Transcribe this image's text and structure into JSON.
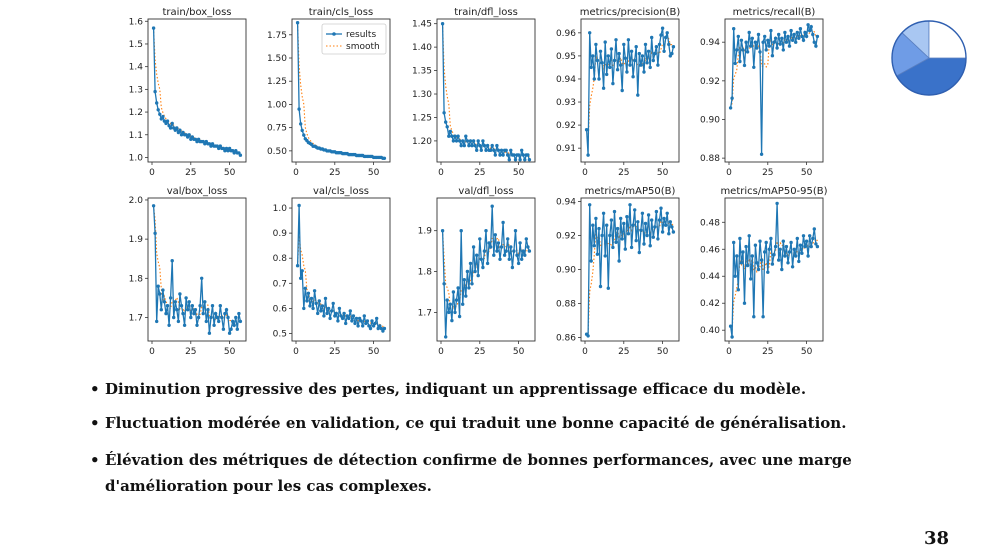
{
  "slide": {
    "bullets": [
      "Diminution progressive des pertes, indiquant un apprentissage efficace du modèle.",
      "Fluctuation modérée en validation, ce qui traduit une bonne capacité de généralisation.",
      "Élévation des métriques de détection confirme de bonnes performances, avec une marge d'amélioration pour les cas complexes."
    ],
    "page_number": "38"
  },
  "pie_icon": {
    "slices": [
      0.42,
      0.2,
      0.13,
      0.25
    ],
    "colors": [
      "#3a72c9",
      "#6f9ce6",
      "#a9c7f2",
      "#ffffff"
    ]
  },
  "colors": {
    "results": "#1f77b4",
    "smooth": "#ff7f0e"
  },
  "legend": {
    "results": "results",
    "smooth": "smooth"
  },
  "chart_data": [
    {
      "type": "line",
      "title": "train/box_loss",
      "ylim": [
        0.98,
        1.61
      ],
      "yticks": [
        1.0,
        1.1,
        1.2,
        1.3,
        1.4,
        1.5,
        1.6
      ],
      "yfmt": 1,
      "legend": false,
      "series": [
        {
          "name": "results",
          "values": [
            1.57,
            1.29,
            1.24,
            1.21,
            1.19,
            1.17,
            1.18,
            1.16,
            1.15,
            1.16,
            1.14,
            1.13,
            1.15,
            1.13,
            1.12,
            1.13,
            1.11,
            1.12,
            1.1,
            1.11,
            1.1,
            1.1,
            1.09,
            1.1,
            1.08,
            1.09,
            1.08,
            1.08,
            1.07,
            1.08,
            1.07,
            1.07,
            1.07,
            1.06,
            1.07,
            1.06,
            1.06,
            1.05,
            1.06,
            1.05,
            1.05,
            1.05,
            1.04,
            1.05,
            1.04,
            1.04,
            1.03,
            1.04,
            1.03,
            1.04,
            1.03,
            1.03,
            1.02,
            1.03,
            1.02,
            1.02,
            1.01
          ]
        }
      ]
    },
    {
      "type": "line",
      "title": "train/cls_loss",
      "ylim": [
        0.38,
        1.92
      ],
      "yticks": [
        0.5,
        0.75,
        1.0,
        1.25,
        1.5,
        1.75
      ],
      "yfmt": 2,
      "legend": true,
      "series": [
        {
          "name": "results",
          "values": [
            1.88,
            0.95,
            0.79,
            0.72,
            0.67,
            0.63,
            0.61,
            0.59,
            0.58,
            0.57,
            0.55,
            0.55,
            0.54,
            0.53,
            0.53,
            0.52,
            0.52,
            0.51,
            0.51,
            0.5,
            0.5,
            0.5,
            0.49,
            0.49,
            0.49,
            0.48,
            0.48,
            0.48,
            0.48,
            0.47,
            0.47,
            0.47,
            0.47,
            0.46,
            0.46,
            0.46,
            0.46,
            0.46,
            0.45,
            0.45,
            0.45,
            0.45,
            0.45,
            0.44,
            0.44,
            0.44,
            0.44,
            0.44,
            0.44,
            0.43,
            0.43,
            0.43,
            0.43,
            0.43,
            0.43,
            0.42,
            0.42
          ]
        }
      ]
    },
    {
      "type": "line",
      "title": "train/dfl_loss",
      "ylim": [
        1.155,
        1.46
      ],
      "yticks": [
        1.2,
        1.25,
        1.3,
        1.35,
        1.4,
        1.45
      ],
      "yfmt": 2,
      "legend": false,
      "series": [
        {
          "name": "results",
          "values": [
            1.45,
            1.26,
            1.24,
            1.23,
            1.21,
            1.22,
            1.21,
            1.2,
            1.21,
            1.2,
            1.21,
            1.2,
            1.19,
            1.2,
            1.19,
            1.21,
            1.2,
            1.19,
            1.2,
            1.19,
            1.2,
            1.19,
            1.18,
            1.2,
            1.19,
            1.18,
            1.2,
            1.19,
            1.18,
            1.19,
            1.18,
            1.18,
            1.19,
            1.18,
            1.17,
            1.19,
            1.18,
            1.17,
            1.18,
            1.17,
            1.18,
            1.18,
            1.17,
            1.16,
            1.18,
            1.17,
            1.17,
            1.16,
            1.17,
            1.17,
            1.16,
            1.18,
            1.17,
            1.16,
            1.17,
            1.17,
            1.16
          ]
        }
      ]
    },
    {
      "type": "line",
      "title": "metrics/precision(B)",
      "ylim": [
        0.904,
        0.966
      ],
      "yticks": [
        0.91,
        0.92,
        0.93,
        0.94,
        0.95,
        0.96
      ],
      "yfmt": 2,
      "legend": false,
      "series": [
        {
          "name": "results",
          "values": [
            0.918,
            0.907,
            0.96,
            0.945,
            0.95,
            0.94,
            0.955,
            0.948,
            0.94,
            0.952,
            0.947,
            0.936,
            0.956,
            0.942,
            0.95,
            0.945,
            0.953,
            0.938,
            0.948,
            0.957,
            0.944,
            0.951,
            0.946,
            0.935,
            0.955,
            0.949,
            0.943,
            0.957,
            0.946,
            0.952,
            0.941,
            0.948,
            0.954,
            0.933,
            0.951,
            0.946,
            0.95,
            0.943,
            0.955,
            0.947,
            0.952,
            0.945,
            0.958,
            0.948,
            0.951,
            0.954,
            0.946,
            0.955,
            0.959,
            0.962,
            0.952,
            0.958,
            0.96,
            0.955,
            0.95,
            0.951,
            0.954
          ]
        }
      ]
    },
    {
      "type": "line",
      "title": "metrics/recall(B)",
      "ylim": [
        0.878,
        0.952
      ],
      "yticks": [
        0.88,
        0.9,
        0.92,
        0.94
      ],
      "yfmt": 2,
      "legend": false,
      "series": [
        {
          "name": "results",
          "values": [
            0.906,
            0.911,
            0.947,
            0.929,
            0.936,
            0.943,
            0.93,
            0.941,
            0.936,
            0.928,
            0.94,
            0.935,
            0.945,
            0.938,
            0.942,
            0.927,
            0.94,
            0.937,
            0.944,
            0.935,
            0.882,
            0.94,
            0.943,
            0.936,
            0.941,
            0.938,
            0.946,
            0.933,
            0.94,
            0.942,
            0.937,
            0.944,
            0.939,
            0.942,
            0.936,
            0.945,
            0.94,
            0.943,
            0.938,
            0.946,
            0.941,
            0.944,
            0.94,
            0.945,
            0.942,
            0.947,
            0.943,
            0.941,
            0.945,
            0.943,
            0.949,
            0.946,
            0.948,
            0.944,
            0.94,
            0.938,
            0.943
          ]
        }
      ]
    },
    {
      "type": "line",
      "title": "val/box_loss",
      "ylim": [
        1.64,
        2.005
      ],
      "yticks": [
        1.7,
        1.8,
        1.9,
        2.0
      ],
      "yfmt": 1,
      "legend": false,
      "series": [
        {
          "name": "results",
          "values": [
            1.985,
            1.915,
            1.69,
            1.78,
            1.76,
            1.72,
            1.77,
            1.74,
            1.71,
            1.73,
            1.68,
            1.75,
            1.845,
            1.7,
            1.74,
            1.72,
            1.69,
            1.76,
            1.73,
            1.71,
            1.68,
            1.75,
            1.72,
            1.74,
            1.7,
            1.73,
            1.71,
            1.72,
            1.68,
            1.7,
            1.73,
            1.8,
            1.71,
            1.74,
            1.69,
            1.72,
            1.66,
            1.7,
            1.73,
            1.68,
            1.71,
            1.7,
            1.69,
            1.73,
            1.7,
            1.67,
            1.71,
            1.72,
            1.7,
            1.66,
            1.67,
            1.69,
            1.68,
            1.7,
            1.67,
            1.71,
            1.69
          ]
        }
      ]
    },
    {
      "type": "line",
      "title": "val/cls_loss",
      "ylim": [
        0.47,
        1.04
      ],
      "yticks": [
        0.5,
        0.6,
        0.7,
        0.8,
        0.9,
        1.0
      ],
      "yfmt": 1,
      "legend": false,
      "series": [
        {
          "name": "results",
          "values": [
            0.77,
            1.01,
            0.72,
            0.75,
            0.6,
            0.68,
            0.63,
            0.66,
            0.61,
            0.64,
            0.6,
            0.67,
            0.62,
            0.58,
            0.63,
            0.59,
            0.61,
            0.57,
            0.64,
            0.58,
            0.6,
            0.56,
            0.59,
            0.62,
            0.57,
            0.58,
            0.55,
            0.6,
            0.57,
            0.56,
            0.58,
            0.54,
            0.57,
            0.56,
            0.59,
            0.55,
            0.57,
            0.54,
            0.56,
            0.53,
            0.56,
            0.55,
            0.53,
            0.57,
            0.54,
            0.55,
            0.53,
            0.52,
            0.55,
            0.53,
            0.54,
            0.56,
            0.52,
            0.53,
            0.52,
            0.51,
            0.52
          ]
        }
      ]
    },
    {
      "type": "line",
      "title": "val/dfl_loss",
      "ylim": [
        1.63,
        1.98
      ],
      "yticks": [
        1.7,
        1.8,
        1.9
      ],
      "yfmt": 1,
      "legend": false,
      "series": [
        {
          "name": "results",
          "values": [
            1.9,
            1.77,
            1.64,
            1.73,
            1.7,
            1.72,
            1.68,
            1.75,
            1.7,
            1.73,
            1.76,
            1.69,
            1.9,
            1.72,
            1.78,
            1.74,
            1.8,
            1.76,
            1.82,
            1.77,
            1.86,
            1.8,
            1.84,
            1.79,
            1.88,
            1.83,
            1.81,
            1.85,
            1.9,
            1.82,
            1.87,
            1.86,
            1.96,
            1.84,
            1.89,
            1.85,
            1.87,
            1.83,
            1.86,
            1.92,
            1.84,
            1.85,
            1.88,
            1.83,
            1.86,
            1.81,
            1.85,
            1.9,
            1.84,
            1.82,
            1.87,
            1.83,
            1.85,
            1.84,
            1.88,
            1.86,
            1.85
          ]
        }
      ]
    },
    {
      "type": "line",
      "title": "metrics/mAP50(B)",
      "ylim": [
        0.858,
        0.942
      ],
      "yticks": [
        0.86,
        0.88,
        0.9,
        0.92,
        0.94
      ],
      "yfmt": 2,
      "legend": false,
      "series": [
        {
          "name": "results",
          "values": [
            0.862,
            0.861,
            0.938,
            0.905,
            0.926,
            0.914,
            0.93,
            0.909,
            0.924,
            0.89,
            0.92,
            0.933,
            0.908,
            0.926,
            0.889,
            0.92,
            0.929,
            0.913,
            0.934,
            0.916,
            0.924,
            0.905,
            0.93,
            0.918,
            0.927,
            0.912,
            0.931,
            0.921,
            0.938,
            0.913,
            0.926,
            0.935,
            0.917,
            0.928,
            0.91,
            0.923,
            0.933,
            0.915,
            0.927,
            0.92,
            0.932,
            0.914,
            0.929,
            0.919,
            0.925,
            0.934,
            0.918,
            0.929,
            0.936,
            0.922,
            0.93,
            0.926,
            0.933,
            0.921,
            0.928,
            0.925,
            0.922
          ]
        }
      ]
    },
    {
      "type": "line",
      "title": "metrics/mAP50-95(B)",
      "ylim": [
        0.392,
        0.498
      ],
      "yticks": [
        0.4,
        0.42,
        0.44,
        0.46,
        0.48
      ],
      "yfmt": 2,
      "legend": false,
      "series": [
        {
          "name": "results",
          "values": [
            0.403,
            0.395,
            0.465,
            0.44,
            0.455,
            0.43,
            0.468,
            0.45,
            0.458,
            0.42,
            0.462,
            0.448,
            0.47,
            0.438,
            0.455,
            0.41,
            0.463,
            0.45,
            0.445,
            0.466,
            0.452,
            0.41,
            0.458,
            0.465,
            0.443,
            0.46,
            0.468,
            0.449,
            0.456,
            0.462,
            0.494,
            0.452,
            0.46,
            0.445,
            0.466,
            0.455,
            0.462,
            0.45,
            0.458,
            0.465,
            0.447,
            0.46,
            0.455,
            0.468,
            0.451,
            0.463,
            0.457,
            0.47,
            0.462,
            0.466,
            0.455,
            0.47,
            0.462,
            0.468,
            0.475,
            0.464,
            0.462
          ]
        }
      ]
    }
  ]
}
